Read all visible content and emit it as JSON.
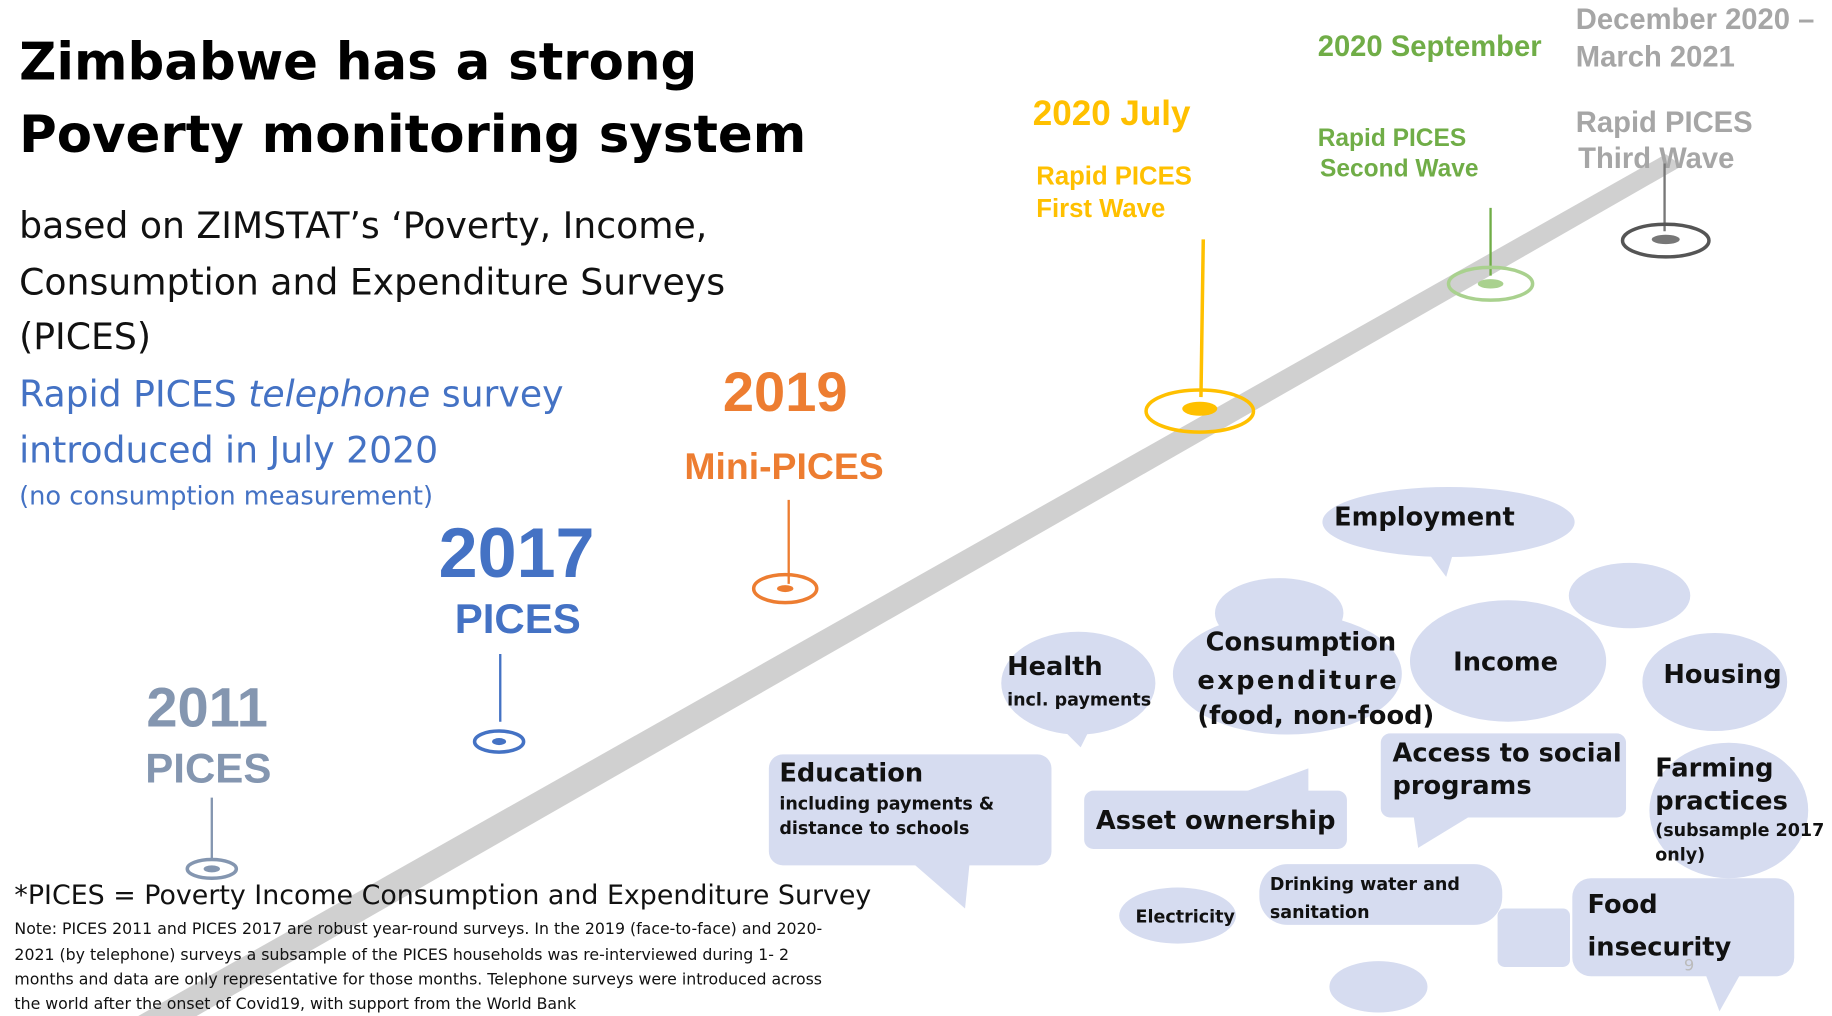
{
  "title": [
    "Zimbabwe has a strong",
    "Poverty monitoring system"
  ],
  "subtitle": [
    "based on ZIMSTAT’s ‘Poverty, Income,",
    "Consumption and Expenditure Surveys",
    "(PICES)"
  ],
  "rapid": {
    "line1": [
      "Rapid PICES ",
      "telephone",
      " survey"
    ],
    "line2": "introduced in July 2020",
    "note": "(no consumption measurement)"
  },
  "timeline": [
    {
      "date": [
        "2011"
      ],
      "label": [
        "PICES"
      ]
    },
    {
      "date": [
        "2017"
      ],
      "label": [
        "PICES"
      ]
    },
    {
      "date": [
        "2019"
      ],
      "label": [
        "Mini-PICES"
      ]
    },
    {
      "date": [
        "2020 July"
      ],
      "label": [
        "Rapid PICES",
        "First Wave"
      ]
    },
    {
      "date": [
        "2020 September"
      ],
      "label": [
        "Rapid PICES",
        "Second Wave"
      ]
    },
    {
      "date": [
        "December 2020 –",
        "March 2021"
      ],
      "label": [
        "Rapid PICES",
        "Third Wave"
      ]
    }
  ],
  "topics": [
    {
      "name": [
        "Employment"
      ]
    },
    {
      "name": [
        "Health"
      ],
      "detail": [
        "incl. payments"
      ]
    },
    {
      "name": [
        "Consumption",
        "expenditure"
      ],
      "detail": [
        "(food, non-food)"
      ]
    },
    {
      "name": [
        "Income"
      ]
    },
    {
      "name": [
        "Housing"
      ]
    },
    {
      "name": [
        "Education"
      ],
      "detail": [
        "including payments &",
        "distance to schools"
      ]
    },
    {
      "name": [
        "Asset ownership"
      ]
    },
    {
      "name": [
        "Access to social",
        "programs"
      ]
    },
    {
      "name": [
        "Farming",
        "practices"
      ],
      "detail": [
        "(subsample 2017",
        "only)"
      ]
    },
    {
      "name": [
        "Electricity"
      ]
    },
    {
      "name": [
        "Drinking water and",
        "sanitation"
      ]
    },
    {
      "name": [
        "Food",
        "insecurity"
      ]
    }
  ],
  "footnote": "*PICES = Poverty Income Consumption and Expenditure Survey",
  "note": [
    "Note: PICES 2011 and PICES 2017 are robust year-round surveys. In the 2019 (face-to-face) and 2020-",
    "2021 (by telephone) surveys a subsample of the PICES households was re-interviewed during 1- 2",
    "months and data are only representative for those months. Telephone surveys were introduced across",
    "the world after the onset of Covid19, with support from the World Bank"
  ],
  "page_number": "9"
}
